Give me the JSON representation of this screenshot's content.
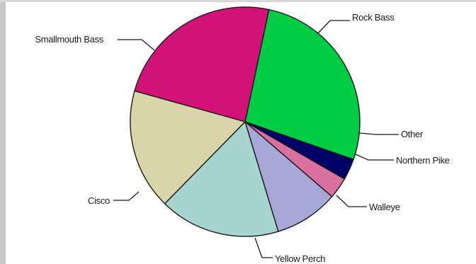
{
  "chart_data": {
    "type": "pie",
    "title": "",
    "slices": [
      {
        "label": "Rock Bass",
        "value": 27.0,
        "color": "#00cc44"
      },
      {
        "label": "Other",
        "value": 3.0,
        "color": "#000066"
      },
      {
        "label": "Northern Pike",
        "value": 3.0,
        "color": "#d9709f"
      },
      {
        "label": "Walleye",
        "value": 9.0,
        "color": "#a8a8d6"
      },
      {
        "label": "Yellow Perch",
        "value": 17.0,
        "color": "#a8d4d0"
      },
      {
        "label": "Cisco",
        "value": 17.0,
        "color": "#d8d6a8"
      },
      {
        "label": "Smallmouth Bass",
        "value": 24.0,
        "color": "#d11276"
      }
    ],
    "start_angle_deg": 78,
    "direction": "clockwise",
    "legend": "none"
  }
}
